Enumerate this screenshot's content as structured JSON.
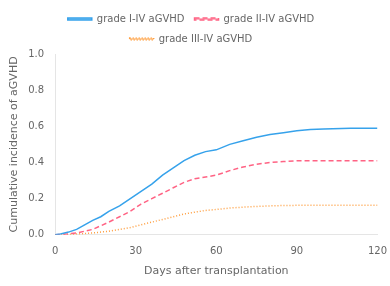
{
  "chart_data": {
    "type": "line",
    "xlabel": "Days after transplantation",
    "ylabel": "Cumulative incidence of aGVHD",
    "x": [
      0,
      2,
      5,
      8,
      11,
      14,
      17,
      20,
      24,
      28,
      32,
      36,
      40,
      44,
      48,
      52,
      56,
      60,
      65,
      70,
      75,
      80,
      85,
      90,
      95,
      100,
      110,
      120
    ],
    "series": [
      {
        "name": "grade I-IV aGVHD",
        "line_style": "solid",
        "values": [
          0.0,
          0.005,
          0.015,
          0.03,
          0.055,
          0.08,
          0.1,
          0.13,
          0.16,
          0.2,
          0.24,
          0.28,
          0.33,
          0.37,
          0.41,
          0.44,
          0.46,
          0.47,
          0.5,
          0.52,
          0.54,
          0.555,
          0.565,
          0.575,
          0.582,
          0.585,
          0.59,
          0.59
        ]
      },
      {
        "name": "grade II-IV aGVHD",
        "line_style": "dashed",
        "values": [
          0.0,
          0.002,
          0.005,
          0.01,
          0.02,
          0.03,
          0.05,
          0.07,
          0.1,
          0.13,
          0.17,
          0.2,
          0.23,
          0.26,
          0.29,
          0.31,
          0.32,
          0.33,
          0.355,
          0.375,
          0.39,
          0.4,
          0.405,
          0.41,
          0.41,
          0.41,
          0.41,
          0.41
        ]
      },
      {
        "name": "grade III-IV aGVHD",
        "line_style": "dotted",
        "values": [
          0.0,
          0.0,
          0.002,
          0.004,
          0.007,
          0.01,
          0.015,
          0.02,
          0.03,
          0.04,
          0.055,
          0.07,
          0.085,
          0.1,
          0.115,
          0.125,
          0.135,
          0.14,
          0.148,
          0.153,
          0.157,
          0.16,
          0.162,
          0.163,
          0.163,
          0.163,
          0.163,
          0.163
        ]
      }
    ],
    "xlim": [
      0,
      120
    ],
    "ylim": [
      0.0,
      1.0
    ],
    "xticks": [
      0,
      30,
      60,
      90,
      120
    ],
    "yticks": [
      {
        "value": 0.0,
        "label": "0.0"
      },
      0.2,
      0.4,
      0.6,
      0.8,
      {
        "value": 1.0,
        "label": "1.0"
      }
    ],
    "grid": false,
    "legend": "top"
  }
}
